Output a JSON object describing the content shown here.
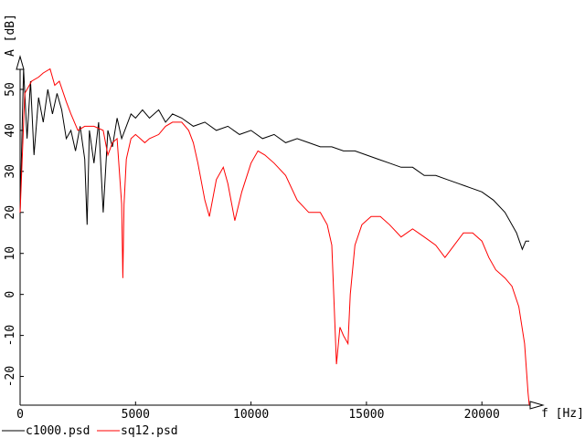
{
  "chart_data": {
    "type": "line",
    "xlabel": "f [Hz]",
    "ylabel": "A [dB]",
    "xlim": [
      0,
      22050
    ],
    "ylim": [
      -27,
      58
    ],
    "xticks": [
      0,
      5000,
      10000,
      15000,
      20000
    ],
    "yticks": [
      -20,
      -10,
      0,
      10,
      20,
      30,
      40,
      50
    ],
    "legend_position": "bottom-left",
    "series": [
      {
        "name": "c1000.psd",
        "color": "#000000",
        "points": [
          [
            0,
            20
          ],
          [
            150,
            55
          ],
          [
            300,
            38
          ],
          [
            450,
            52
          ],
          [
            600,
            34
          ],
          [
            800,
            48
          ],
          [
            1000,
            42
          ],
          [
            1200,
            50
          ],
          [
            1400,
            44
          ],
          [
            1600,
            49
          ],
          [
            1800,
            45
          ],
          [
            2000,
            38
          ],
          [
            2200,
            40
          ],
          [
            2400,
            35
          ],
          [
            2600,
            41
          ],
          [
            2800,
            33
          ],
          [
            2900,
            17
          ],
          [
            3000,
            40
          ],
          [
            3200,
            32
          ],
          [
            3400,
            42
          ],
          [
            3600,
            20
          ],
          [
            3800,
            40
          ],
          [
            4000,
            36
          ],
          [
            4200,
            43
          ],
          [
            4400,
            38
          ],
          [
            4600,
            41
          ],
          [
            4800,
            44
          ],
          [
            5000,
            43
          ],
          [
            5300,
            45
          ],
          [
            5600,
            43
          ],
          [
            6000,
            45
          ],
          [
            6300,
            42
          ],
          [
            6600,
            44
          ],
          [
            7000,
            43
          ],
          [
            7500,
            41
          ],
          [
            8000,
            42
          ],
          [
            8500,
            40
          ],
          [
            9000,
            41
          ],
          [
            9500,
            39
          ],
          [
            10000,
            40
          ],
          [
            10500,
            38
          ],
          [
            11000,
            39
          ],
          [
            11500,
            37
          ],
          [
            12000,
            38
          ],
          [
            12500,
            37
          ],
          [
            13000,
            36
          ],
          [
            13500,
            36
          ],
          [
            14000,
            35
          ],
          [
            14500,
            35
          ],
          [
            15000,
            34
          ],
          [
            15500,
            33
          ],
          [
            16000,
            32
          ],
          [
            16500,
            31
          ],
          [
            17000,
            31
          ],
          [
            17500,
            29
          ],
          [
            18000,
            29
          ],
          [
            18500,
            28
          ],
          [
            19000,
            27
          ],
          [
            19500,
            26
          ],
          [
            20000,
            25
          ],
          [
            20500,
            23
          ],
          [
            21000,
            20
          ],
          [
            21500,
            15
          ],
          [
            21750,
            11
          ],
          [
            21900,
            13
          ],
          [
            22050,
            13
          ]
        ]
      },
      {
        "name": "sq12.psd",
        "color": "#ff0000",
        "points": [
          [
            0,
            20
          ],
          [
            200,
            49
          ],
          [
            500,
            52
          ],
          [
            800,
            53
          ],
          [
            1000,
            54
          ],
          [
            1300,
            55
          ],
          [
            1500,
            51
          ],
          [
            1700,
            52
          ],
          [
            2000,
            47
          ],
          [
            2200,
            44
          ],
          [
            2500,
            40
          ],
          [
            2800,
            41
          ],
          [
            3200,
            41
          ],
          [
            3600,
            40
          ],
          [
            3800,
            34
          ],
          [
            4000,
            37
          ],
          [
            4200,
            38
          ],
          [
            4300,
            30
          ],
          [
            4400,
            22
          ],
          [
            4450,
            4
          ],
          [
            4500,
            22
          ],
          [
            4600,
            33
          ],
          [
            4800,
            38
          ],
          [
            5000,
            39
          ],
          [
            5200,
            38
          ],
          [
            5400,
            37
          ],
          [
            5600,
            38
          ],
          [
            6000,
            39
          ],
          [
            6300,
            41
          ],
          [
            6600,
            42
          ],
          [
            7000,
            42
          ],
          [
            7300,
            40
          ],
          [
            7500,
            37
          ],
          [
            7700,
            32
          ],
          [
            8000,
            23
          ],
          [
            8200,
            19
          ],
          [
            8500,
            28
          ],
          [
            8800,
            31
          ],
          [
            9000,
            27
          ],
          [
            9300,
            18
          ],
          [
            9600,
            25
          ],
          [
            10000,
            32
          ],
          [
            10300,
            35
          ],
          [
            10600,
            34
          ],
          [
            11000,
            32
          ],
          [
            11500,
            29
          ],
          [
            12000,
            23
          ],
          [
            12500,
            20
          ],
          [
            13000,
            20
          ],
          [
            13300,
            17
          ],
          [
            13500,
            12
          ],
          [
            13700,
            -17
          ],
          [
            13850,
            -8
          ],
          [
            14000,
            -10
          ],
          [
            14200,
            -12
          ],
          [
            14300,
            0
          ],
          [
            14500,
            12
          ],
          [
            14800,
            17
          ],
          [
            15200,
            19
          ],
          [
            15600,
            19
          ],
          [
            16000,
            17
          ],
          [
            16500,
            14
          ],
          [
            17000,
            16
          ],
          [
            17500,
            14
          ],
          [
            18000,
            12
          ],
          [
            18400,
            9
          ],
          [
            18800,
            12
          ],
          [
            19200,
            15
          ],
          [
            19600,
            15
          ],
          [
            20000,
            13
          ],
          [
            20300,
            9
          ],
          [
            20600,
            6
          ],
          [
            21000,
            4
          ],
          [
            21300,
            2
          ],
          [
            21600,
            -3
          ],
          [
            21850,
            -12
          ],
          [
            22000,
            -24
          ],
          [
            22050,
            -27
          ]
        ]
      }
    ]
  }
}
